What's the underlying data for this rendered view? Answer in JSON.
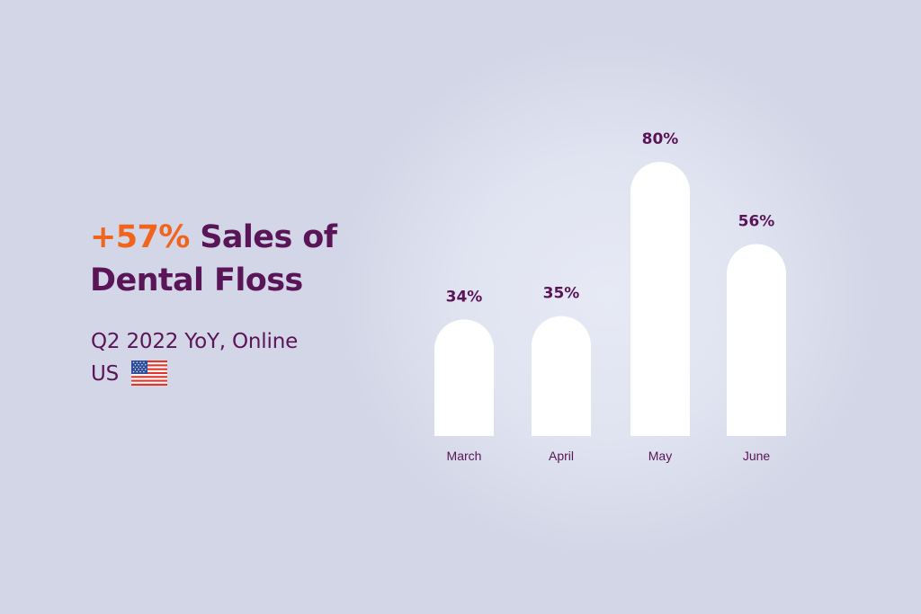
{
  "headline": {
    "accent": "+57%",
    "rest_line1": " Sales of",
    "line2": "Dental Floss"
  },
  "subtitle": {
    "line1": "Q2 2022 YoY, Online",
    "line2": "US"
  },
  "icons": {
    "flag": "us-flag-icon"
  },
  "colors": {
    "background": "#d3d6e6",
    "text": "#5a1458",
    "accent": "#f0641e",
    "bar": "#ffffff"
  },
  "chart_data": {
    "type": "bar",
    "categories": [
      "March",
      "April",
      "May",
      "June"
    ],
    "values": [
      34,
      35,
      80,
      56
    ],
    "value_labels": [
      "34%",
      "35%",
      "80%",
      "56%"
    ],
    "title": "",
    "xlabel": "",
    "ylabel": "",
    "grid": false
  }
}
